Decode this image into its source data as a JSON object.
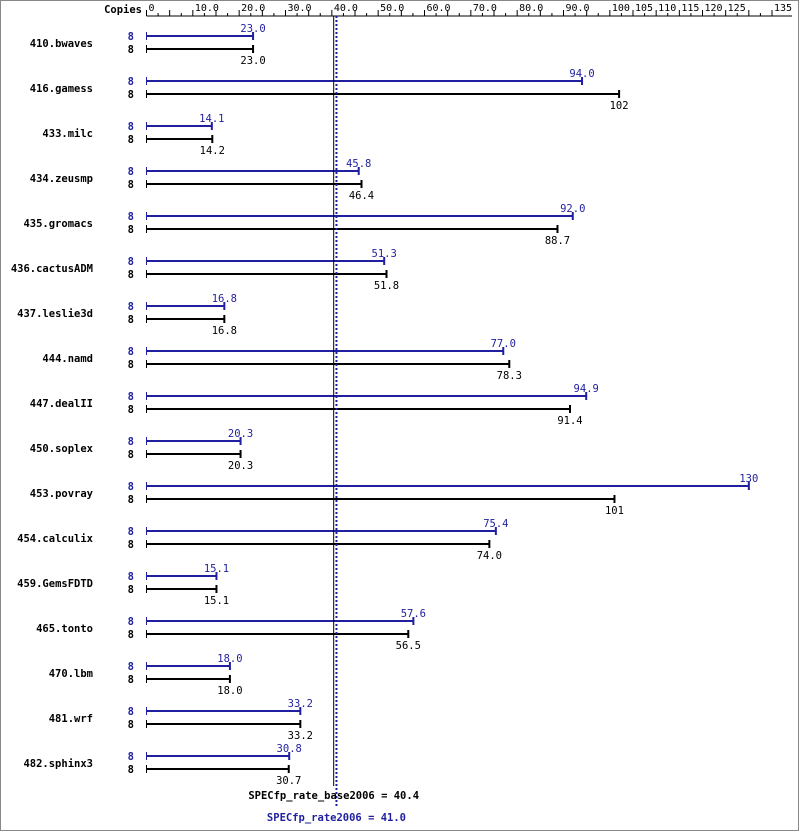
{
  "chart_data": {
    "type": "bar",
    "orientation": "horizontal",
    "axis": {
      "title": "Copies",
      "ticks": [
        "0",
        "10.0",
        "20.0",
        "30.0",
        "40.0",
        "50.0",
        "60.0",
        "70.0",
        "80.0",
        "90.0",
        "100",
        "105",
        "110",
        "115",
        "120",
        "125",
        "135"
      ],
      "xlim": [
        0,
        135
      ]
    },
    "categories": [
      "410.bwaves",
      "416.gamess",
      "433.milc",
      "434.zeusmp",
      "435.gromacs",
      "436.cactusADM",
      "437.leslie3d",
      "444.namd",
      "447.dealII",
      "450.soplex",
      "453.povray",
      "454.calculix",
      "459.GemsFDTD",
      "465.tonto",
      "470.lbm",
      "481.wrf",
      "482.sphinx3"
    ],
    "series": [
      {
        "name": "SPECfp_rate2006",
        "color": "#1f1f9f",
        "copies": [
          "8",
          "8",
          "8",
          "8",
          "8",
          "8",
          "8",
          "8",
          "8",
          "8",
          "8",
          "8",
          "8",
          "8",
          "8",
          "8",
          "8"
        ],
        "values": [
          23.0,
          94.0,
          14.1,
          45.8,
          92.0,
          51.3,
          16.8,
          77.0,
          94.9,
          20.3,
          130,
          75.4,
          15.1,
          57.6,
          18.0,
          33.2,
          30.8
        ],
        "labels": [
          "23.0",
          "94.0",
          "14.1",
          "45.8",
          "92.0",
          "51.3",
          "16.8",
          "77.0",
          "94.9",
          "20.3",
          "130",
          "75.4",
          "15.1",
          "57.6",
          "18.0",
          "33.2",
          "30.8"
        ]
      },
      {
        "name": "SPECfp_rate_base2006",
        "color": "#000000",
        "copies": [
          "8",
          "8",
          "8",
          "8",
          "8",
          "8",
          "8",
          "8",
          "8",
          "8",
          "8",
          "8",
          "8",
          "8",
          "8",
          "8",
          "8"
        ],
        "values": [
          23.0,
          102,
          14.2,
          46.4,
          88.7,
          51.8,
          16.8,
          78.3,
          91.4,
          20.3,
          101,
          74.0,
          15.1,
          56.5,
          18.0,
          33.2,
          30.7
        ],
        "labels": [
          "23.0",
          "102",
          "14.2",
          "46.4",
          "88.7",
          "51.8",
          "16.8",
          "78.3",
          "91.4",
          "20.3",
          "101",
          "74.0",
          "15.1",
          "56.5",
          "18.0",
          "33.2",
          "30.7"
        ]
      }
    ],
    "reference_lines": [
      {
        "label": "SPECfp_rate_base2006 = 40.4",
        "value": 40.4,
        "color": "#000000",
        "style": "solid"
      },
      {
        "label": "SPECfp_rate2006 = 41.0",
        "value": 41.0,
        "color": "#1f1f9f",
        "style": "dotted"
      }
    ]
  }
}
